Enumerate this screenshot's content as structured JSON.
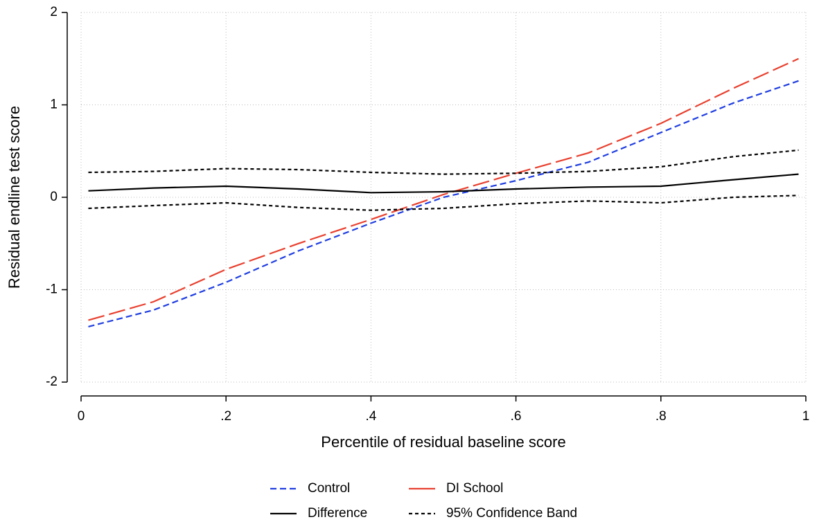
{
  "chart_data": {
    "type": "line",
    "x_label": "Percentile of residual baseline score",
    "y_label": "Residual endline test score",
    "x": [
      0.01,
      0.1,
      0.2,
      0.3,
      0.4,
      0.5,
      0.6,
      0.7,
      0.8,
      0.9,
      0.99
    ],
    "series": [
      {
        "name": "Control",
        "color": "#1f3ee0",
        "style": "dash",
        "values": [
          -1.4,
          -1.22,
          -0.92,
          -0.58,
          -0.28,
          0.0,
          0.18,
          0.38,
          0.7,
          1.02,
          1.26
        ]
      },
      {
        "name": "DI School",
        "color": "#e8402f",
        "style": "longdash",
        "values": [
          -1.33,
          -1.13,
          -0.78,
          -0.5,
          -0.24,
          0.03,
          0.26,
          0.48,
          0.8,
          1.18,
          1.5
        ]
      },
      {
        "name": "Difference",
        "color": "#000000",
        "style": "solid",
        "values": [
          0.07,
          0.1,
          0.12,
          0.09,
          0.05,
          0.06,
          0.09,
          0.11,
          0.12,
          0.19,
          0.25
        ]
      },
      {
        "name": "95% Confidence Band",
        "color": "#000000",
        "style": "shortdash",
        "values": [
          0.27,
          0.28,
          0.31,
          0.3,
          0.27,
          0.25,
          0.26,
          0.28,
          0.33,
          0.44,
          0.51
        ]
      },
      {
        "color": "#000000",
        "style": "shortdash",
        "values": [
          -0.12,
          -0.09,
          -0.06,
          -0.11,
          -0.14,
          -0.12,
          -0.07,
          -0.04,
          -0.06,
          0.0,
          0.02
        ]
      }
    ],
    "xlim": [
      0,
      1
    ],
    "ylim": [
      -2,
      2
    ],
    "xticks": [
      0,
      {
        "value": 0.2,
        "label": ".2"
      },
      {
        "value": 0.4,
        "label": ".4"
      },
      {
        "value": 0.6,
        "label": ".6"
      },
      {
        "value": 0.8,
        "label": ".8"
      },
      1
    ],
    "yticks": [
      2,
      1,
      0,
      -1,
      -2
    ],
    "grid": true
  }
}
